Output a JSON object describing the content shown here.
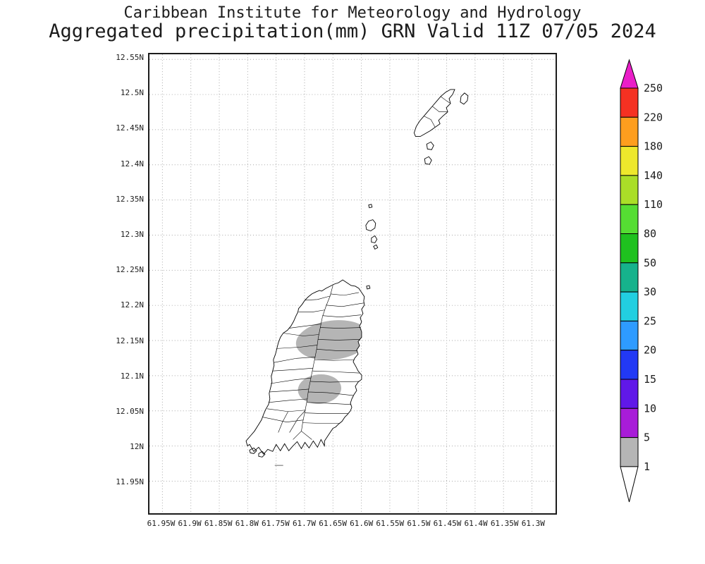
{
  "title": {
    "line1": "Caribbean Institute for Meteorology and Hydrology",
    "line2": "Aggregated precipitation(mm) GRN Valid 11Z 07/05 2024"
  },
  "map": {
    "region_code": "GRN",
    "lat_ticks": [
      "12.55N",
      "12.5N",
      "12.45N",
      "12.4N",
      "12.35N",
      "12.3N",
      "12.25N",
      "12.2N",
      "12.15N",
      "12.1N",
      "12.05N",
      "12N",
      "11.95N"
    ],
    "lon_ticks": [
      "61.95W",
      "61.9W",
      "61.85W",
      "61.8W",
      "61.75W",
      "61.7W",
      "61.65W",
      "61.6W",
      "61.55W",
      "61.5W",
      "61.45W",
      "61.4W",
      "61.35W",
      "61.3W"
    ],
    "grid_color": "#a8a8a8",
    "coast_color": "#000000",
    "shade_color": "#b5b5b5"
  },
  "precipitation": {
    "units": "mm",
    "shaded_level_mm": "1-5",
    "regions": [
      "north-central Grenada",
      "south-central Grenada"
    ]
  },
  "colorbar": {
    "labels": [
      "250",
      "220",
      "180",
      "140",
      "110",
      "80",
      "50",
      "30",
      "25",
      "20",
      "15",
      "10",
      "5",
      "1"
    ],
    "band_colors_top_to_bottom": [
      "#f53122",
      "#fe9e1e",
      "#eee82c",
      "#aade28",
      "#55dd33",
      "#1fc11f",
      "#16b28c",
      "#22cfe0",
      "#2e9bff",
      "#2239f5",
      "#6018e8",
      "#a81cd8",
      "#b5b5b5"
    ],
    "above_color": "#ea1ec8",
    "below_color": "#ffffff"
  }
}
